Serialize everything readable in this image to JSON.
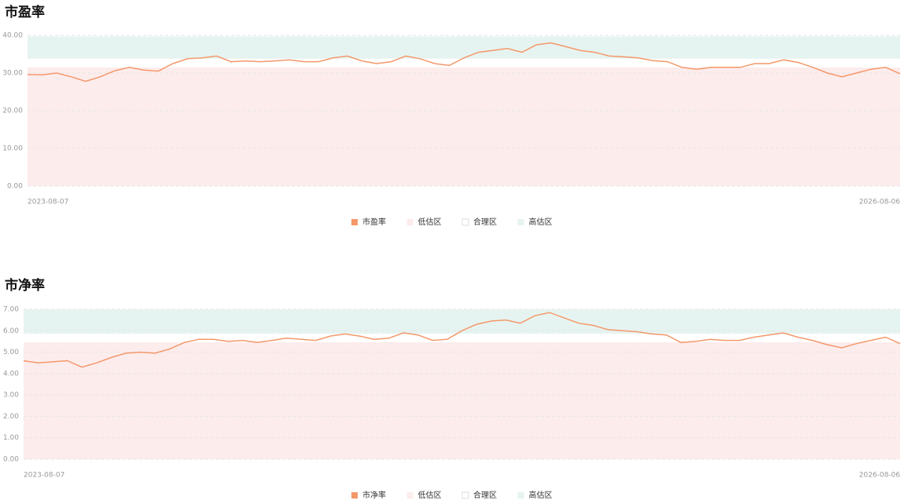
{
  "chart_data": [
    {
      "type": "line",
      "title": "市盈率",
      "categories": [
        "2023-08-07",
        null,
        null,
        null,
        null,
        null,
        null,
        null,
        null,
        null,
        null,
        null,
        null,
        null,
        null,
        null,
        null,
        null,
        null,
        null,
        null,
        null,
        null,
        null,
        null,
        null,
        null,
        null,
        null,
        null,
        null,
        null,
        null,
        null,
        null,
        null,
        null,
        null,
        null,
        null,
        null,
        null,
        null,
        null,
        null,
        null,
        null,
        null,
        null,
        null,
        null,
        null,
        null,
        null,
        null,
        null,
        null,
        null,
        null,
        null,
        "2026-08-06"
      ],
      "series": [
        {
          "name": "市盈率",
          "color": "#f4986a",
          "values": [
            29.6,
            29.5,
            30.0,
            29.0,
            27.8,
            29.0,
            30.6,
            31.5,
            30.8,
            30.5,
            32.5,
            33.8,
            34.0,
            34.5,
            33.0,
            33.2,
            33.0,
            33.2,
            33.5,
            33.0,
            33.0,
            34.0,
            34.5,
            33.2,
            32.5,
            33.0,
            34.5,
            33.8,
            32.5,
            32.0,
            34.0,
            35.5,
            36.0,
            36.5,
            35.5,
            37.5,
            38.0,
            37.0,
            36.0,
            35.5,
            34.5,
            34.3,
            34.0,
            33.3,
            33.0,
            31.5,
            31.0,
            31.5,
            31.5,
            31.5,
            32.5,
            32.5,
            33.5,
            32.8,
            31.5,
            30.0,
            29.0,
            30.0,
            31.0,
            31.5,
            29.8
          ]
        }
      ],
      "zones": [
        {
          "name": "低估区",
          "color": "#fdecec",
          "range": [
            0,
            31.5
          ]
        },
        {
          "name": "合理区",
          "color": "#ffffff",
          "range": [
            31.5,
            33.8
          ]
        },
        {
          "name": "高估区",
          "color": "#e6f4f1",
          "range": [
            33.8,
            39.7
          ]
        }
      ],
      "ylim": [
        0,
        40
      ],
      "yticks": [
        {
          "value": 0,
          "label": "0.00"
        },
        {
          "value": 10,
          "label": "10.00"
        },
        {
          "value": 20,
          "label": "20.00"
        },
        {
          "value": 30,
          "label": "30.00"
        },
        {
          "value": 40,
          "label": "40.00"
        }
      ],
      "grid": true
    },
    {
      "type": "line",
      "title": "市净率",
      "categories": [
        "2023-08-07",
        null,
        null,
        null,
        null,
        null,
        null,
        null,
        null,
        null,
        null,
        null,
        null,
        null,
        null,
        null,
        null,
        null,
        null,
        null,
        null,
        null,
        null,
        null,
        null,
        null,
        null,
        null,
        null,
        null,
        null,
        null,
        null,
        null,
        null,
        null,
        null,
        null,
        null,
        null,
        null,
        null,
        null,
        null,
        null,
        null,
        null,
        null,
        null,
        null,
        null,
        null,
        null,
        null,
        null,
        null,
        null,
        null,
        null,
        null,
        "2026-08-06"
      ],
      "series": [
        {
          "name": "市净率",
          "color": "#f4986a",
          "values": [
            4.6,
            4.5,
            4.55,
            4.6,
            4.3,
            4.5,
            4.75,
            4.95,
            5.0,
            4.95,
            5.15,
            5.45,
            5.6,
            5.6,
            5.5,
            5.55,
            5.45,
            5.55,
            5.65,
            5.6,
            5.55,
            5.75,
            5.85,
            5.75,
            5.6,
            5.65,
            5.9,
            5.8,
            5.55,
            5.6,
            6.0,
            6.3,
            6.45,
            6.5,
            6.35,
            6.7,
            6.85,
            6.6,
            6.35,
            6.25,
            6.05,
            6.0,
            5.95,
            5.85,
            5.8,
            5.45,
            5.5,
            5.6,
            5.55,
            5.55,
            5.7,
            5.8,
            5.9,
            5.7,
            5.55,
            5.35,
            5.2,
            5.4,
            5.55,
            5.7,
            5.4
          ]
        }
      ],
      "zones": [
        {
          "name": "低估区",
          "color": "#fdecec",
          "range": [
            0,
            5.46
          ]
        },
        {
          "name": "合理区",
          "color": "#ffffff",
          "range": [
            5.46,
            5.86
          ]
        },
        {
          "name": "高估区",
          "color": "#e6f4f1",
          "range": [
            5.86,
            7.0
          ]
        }
      ],
      "ylim": [
        0,
        7
      ],
      "yticks": [
        {
          "value": 0,
          "label": "0.00"
        },
        {
          "value": 1,
          "label": "1.00"
        },
        {
          "value": 2,
          "label": "2.00"
        },
        {
          "value": 3,
          "label": "3.00"
        },
        {
          "value": 4,
          "label": "4.00"
        },
        {
          "value": 5,
          "label": "5.00"
        },
        {
          "value": 6,
          "label": "6.00"
        },
        {
          "value": 7,
          "label": "7.00"
        }
      ],
      "grid": true
    }
  ]
}
